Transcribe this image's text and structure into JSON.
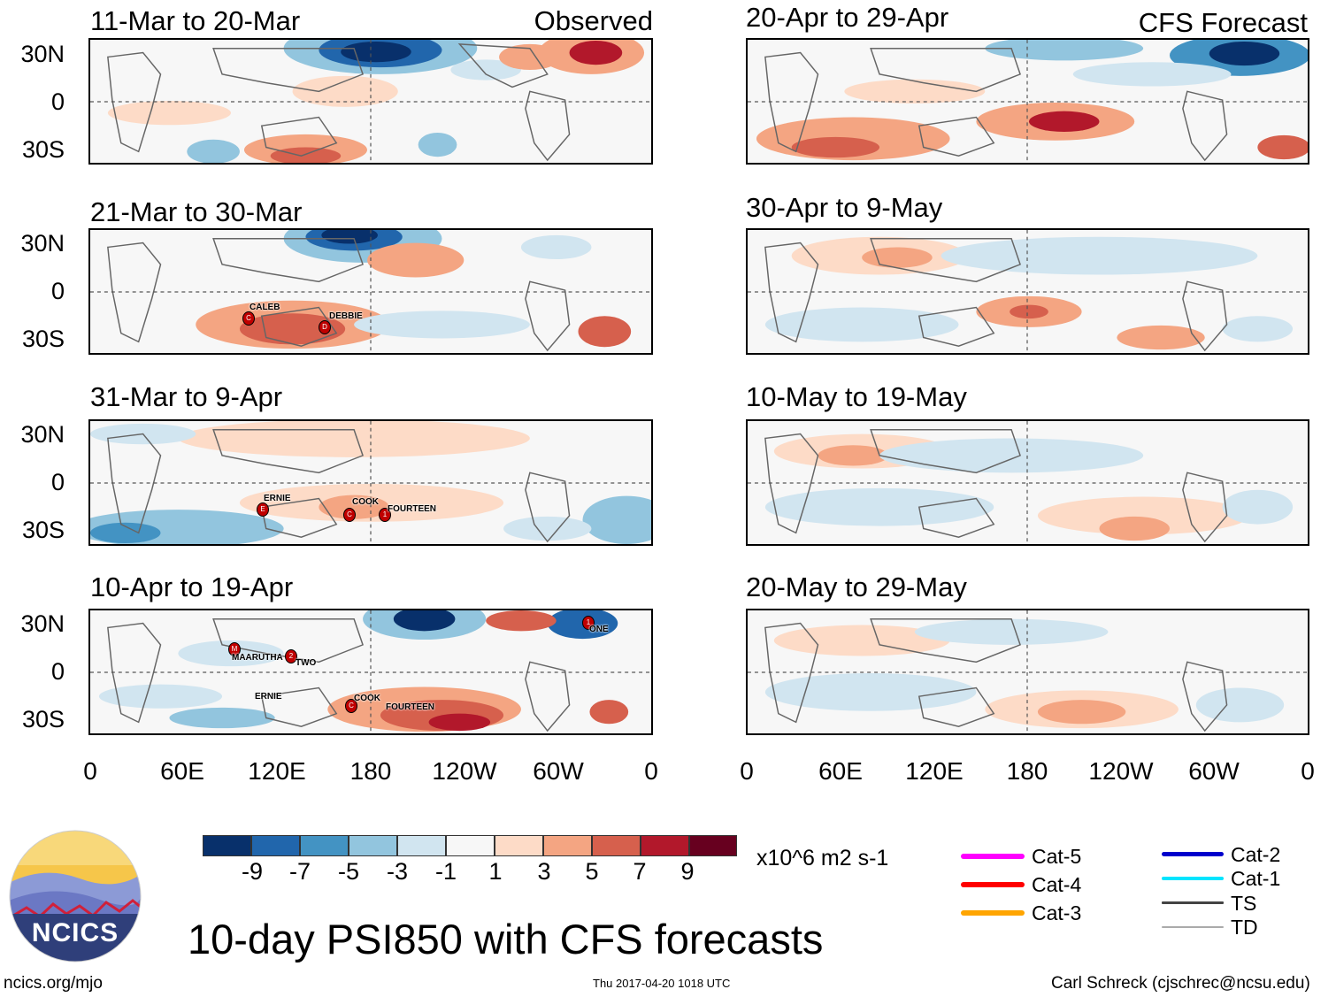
{
  "observed_label": "Observed",
  "forecast_label": "CFS Forecast",
  "panels_left": [
    {
      "title": "11-Mar to 20-Mar"
    },
    {
      "title": "21-Mar to 30-Mar"
    },
    {
      "title": "31-Mar to 9-Apr"
    },
    {
      "title": "10-Apr to 19-Apr"
    }
  ],
  "panels_right": [
    {
      "title": "20-Apr to 29-Apr"
    },
    {
      "title": "30-Apr to 9-May"
    },
    {
      "title": "10-May to 19-May"
    },
    {
      "title": "20-May to 29-May"
    }
  ],
  "lat_labels": [
    "30N",
    "0",
    "30S"
  ],
  "lon_labels": [
    "0",
    "60E",
    "120E",
    "180",
    "120W",
    "60W",
    "0"
  ],
  "storms": {
    "p2": [
      {
        "name": "CALEB",
        "letter": "C"
      },
      {
        "name": "DEBBIE",
        "letter": "D"
      }
    ],
    "p3": [
      {
        "name": "ERNIE",
        "letter": "E"
      },
      {
        "name": "COOK",
        "letter": "C"
      },
      {
        "name": "FOURTEEN",
        "letter": "1"
      }
    ],
    "p4": [
      {
        "name": "MAARUTHA",
        "letter": "M"
      },
      {
        "name": "TWO",
        "letter": "2"
      },
      {
        "name": "ERNIE",
        "letter": ""
      },
      {
        "name": "COOK",
        "letter": "C"
      },
      {
        "name": "FOURTEEN",
        "letter": ""
      },
      {
        "name": "ONE",
        "letter": "1"
      }
    ]
  },
  "colorbar": {
    "colors": [
      "#08306b",
      "#2166ac",
      "#4393c3",
      "#92c5de",
      "#d1e5f0",
      "#f7f7f7",
      "#fddbc7",
      "#f4a582",
      "#d6604d",
      "#b2182b",
      "#67001f"
    ],
    "labels": [
      "-9",
      "-7",
      "-5",
      "-3",
      "-1",
      "1",
      "3",
      "5",
      "7",
      "9"
    ],
    "units": "x10^6 m2 s-1"
  },
  "legend": [
    {
      "label": "Cat-5",
      "color": "#ff00ff"
    },
    {
      "label": "Cat-4",
      "color": "#ff0000"
    },
    {
      "label": "Cat-3",
      "color": "#ffa500"
    },
    {
      "label": "Cat-2",
      "color": "#0000cc"
    },
    {
      "label": "Cat-1",
      "color": "#00e5ff"
    },
    {
      "label": "TS",
      "color": "#444444"
    },
    {
      "label": "TD",
      "color": "#aaaaaa"
    }
  ],
  "logo_text": "NCICS",
  "main_title": "10-day PSI850 with CFS forecasts",
  "footer": {
    "url": "ncics.org/mjo",
    "timestamp": "Thu 2017-04-20 1018 UTC",
    "author": "Carl Schreck (cjschrec@ncsu.edu)"
  }
}
